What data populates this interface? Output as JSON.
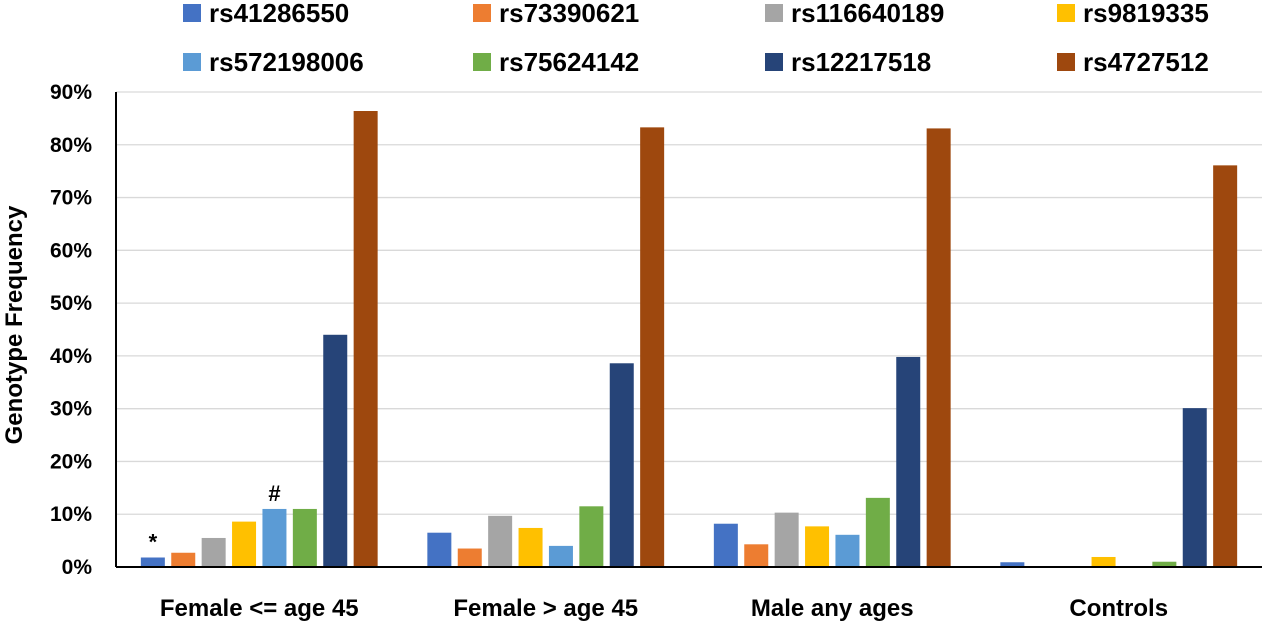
{
  "chart_data": {
    "type": "bar",
    "title": "",
    "xlabel": "",
    "ylabel": "Genotype Frequency",
    "ylim": [
      0,
      90
    ],
    "y_tick_format": "percent",
    "y_ticks": [
      "0%",
      "10%",
      "20%",
      "30%",
      "40%",
      "50%",
      "60%",
      "70%",
      "80%",
      "90%"
    ],
    "grid": true,
    "legend_position": "top",
    "categories": [
      "Female <= age 45",
      "Female > age 45",
      "Male any ages",
      "Controls"
    ],
    "series": [
      {
        "name": "rs41286550",
        "color": "#4472C4",
        "values": [
          1.8,
          6.5,
          8.2,
          0.9
        ]
      },
      {
        "name": "rs73390621",
        "color": "#ED7D31",
        "values": [
          2.7,
          3.5,
          4.3,
          0
        ]
      },
      {
        "name": "rs116640189",
        "color": "#A5A5A5",
        "values": [
          5.5,
          9.7,
          10.3,
          0
        ]
      },
      {
        "name": "rs9819335",
        "color": "#FFC000",
        "values": [
          8.6,
          7.4,
          7.7,
          1.9
        ]
      },
      {
        "name": "rs572198006",
        "color": "#5B9BD5",
        "values": [
          11.0,
          4.0,
          6.1,
          0
        ]
      },
      {
        "name": "rs75624142",
        "color": "#70AD47",
        "values": [
          11.0,
          11.5,
          13.1,
          1.0
        ]
      },
      {
        "name": "rs12217518",
        "color": "#264478",
        "values": [
          44.0,
          38.6,
          39.8,
          30.1
        ]
      },
      {
        "name": "rs4727512",
        "color": "#9E480E",
        "values": [
          86.4,
          83.3,
          83.1,
          76.1
        ]
      }
    ],
    "annotations": [
      {
        "text": "*",
        "category_index": 0,
        "series_index": 0
      },
      {
        "text": "#",
        "category_index": 0,
        "series_index": 4
      }
    ]
  }
}
